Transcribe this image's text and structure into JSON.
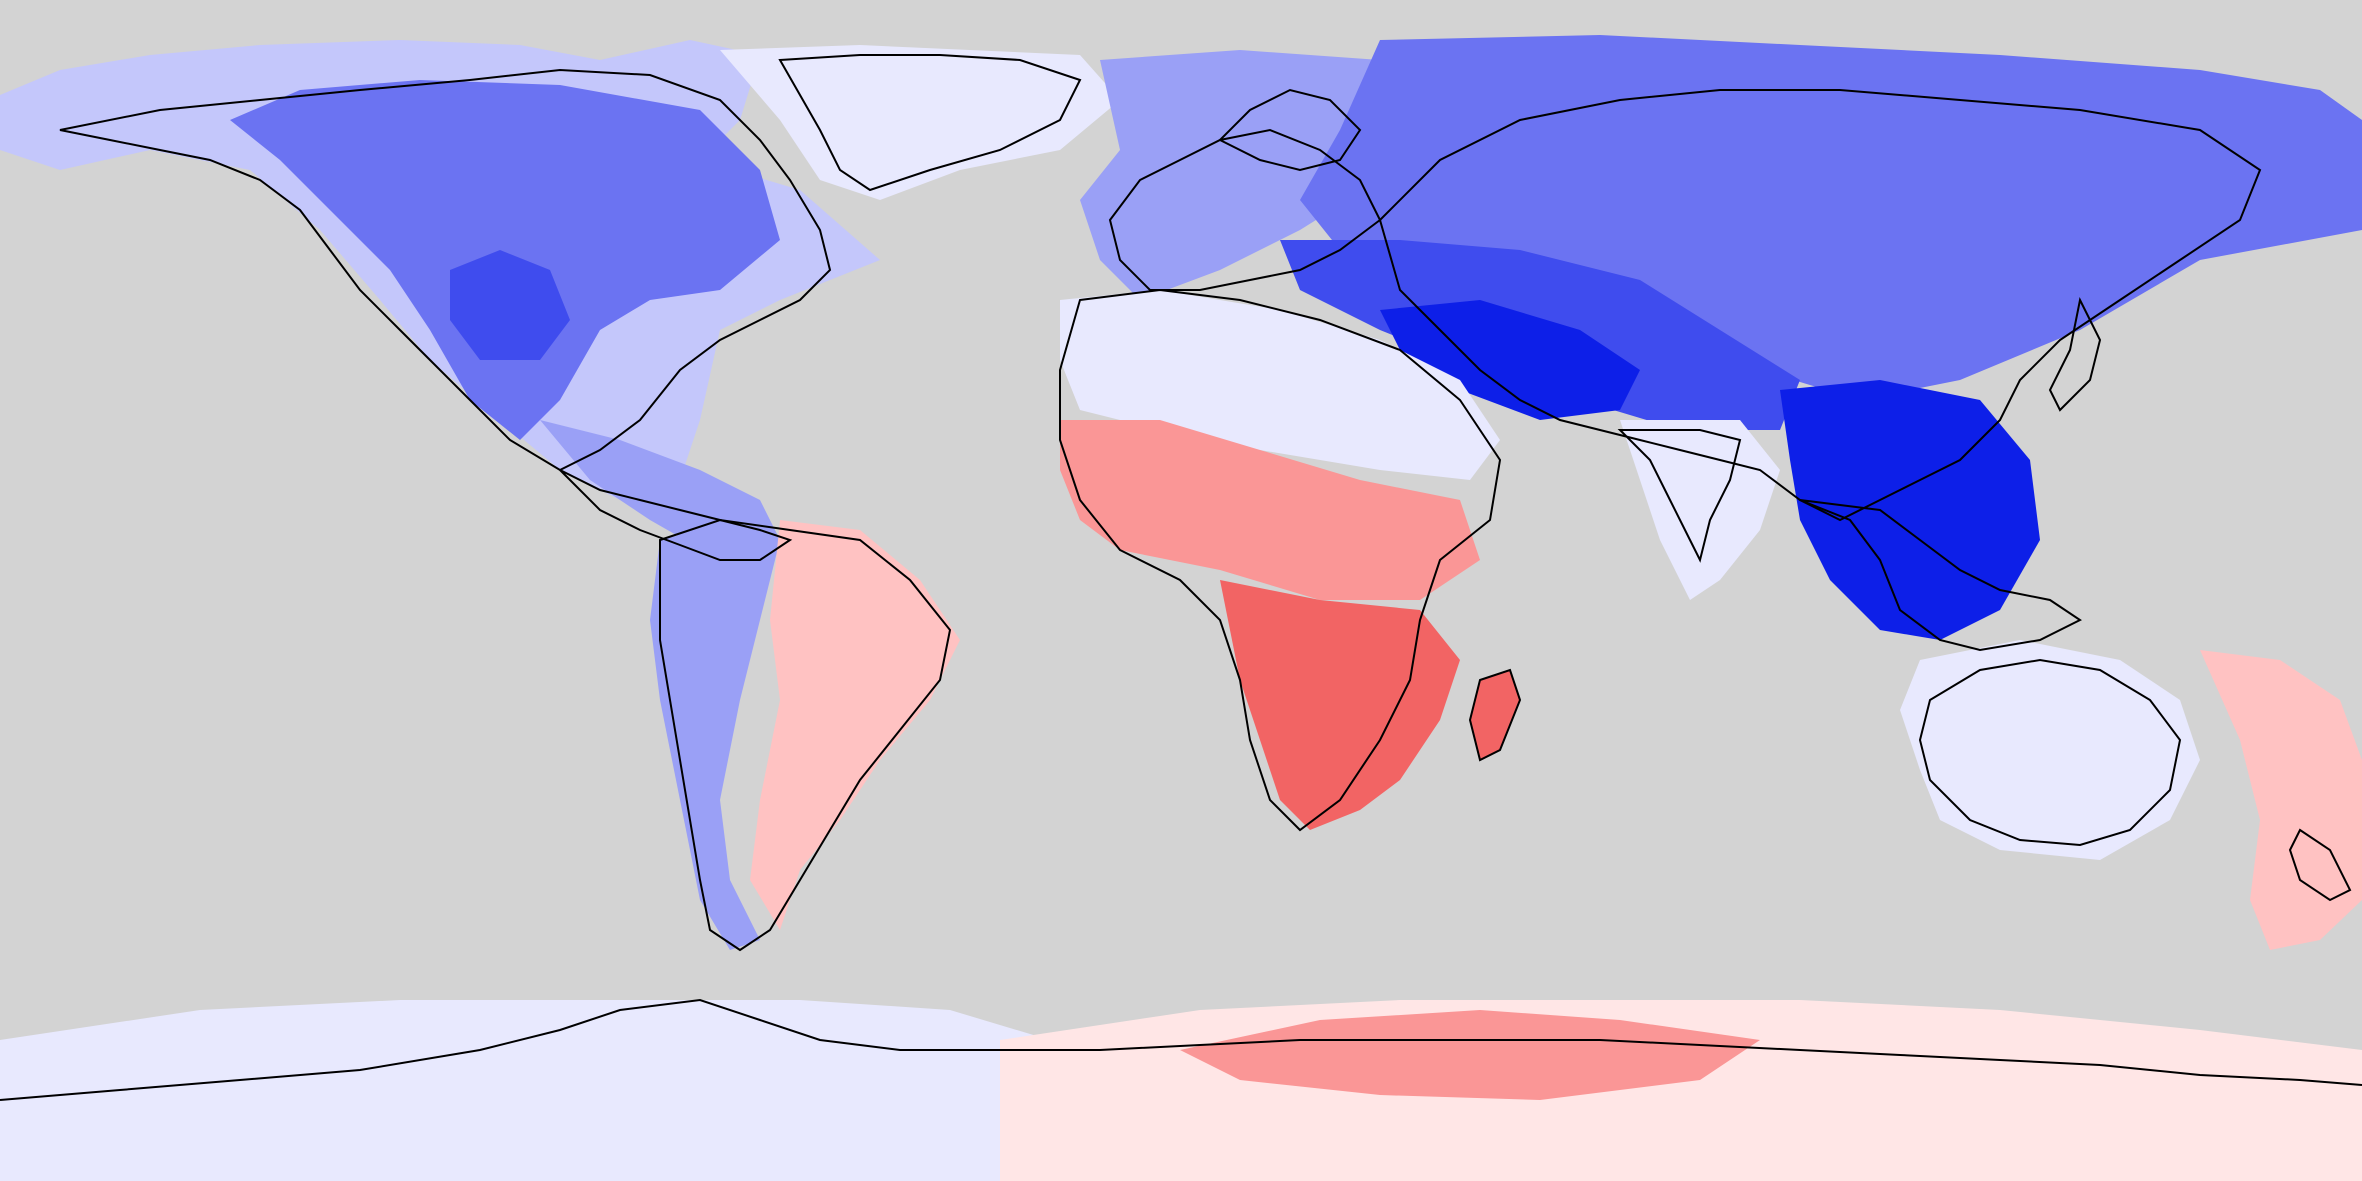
{
  "map": {
    "projection": "equirectangular",
    "ocean_color": "#d3d3d3",
    "coastline_color": "#000000",
    "legend_visible": false,
    "title": "",
    "color_scale": {
      "type": "diverging",
      "levels": [
        {
          "level": -4,
          "color": "#0d1fe8"
        },
        {
          "level": -3,
          "color": "#3f4cee"
        },
        {
          "level": -2,
          "color": "#6b73f2"
        },
        {
          "level": -1,
          "color": "#9aa0f6"
        },
        {
          "level": 0,
          "color": "#c4c7fb"
        },
        {
          "level": 1,
          "color": "#e8e9fe"
        },
        {
          "level": 2,
          "color": "#ffe6e6"
        },
        {
          "level": 3,
          "color": "#ffc2c2"
        },
        {
          "level": 4,
          "color": "#fa9696"
        },
        {
          "level": 5,
          "color": "#f26464"
        }
      ]
    },
    "regions": [
      {
        "name": "north-america-north",
        "level": 0
      },
      {
        "name": "north-america-core",
        "level": -2
      },
      {
        "name": "north-america-rockies",
        "level": -3
      },
      {
        "name": "greenland",
        "level": 1
      },
      {
        "name": "central-america",
        "level": -1
      },
      {
        "name": "south-america-andes",
        "level": -1
      },
      {
        "name": "south-america-east",
        "level": 3
      },
      {
        "name": "europe",
        "level": -1
      },
      {
        "name": "siberia",
        "level": -2
      },
      {
        "name": "central-asia",
        "level": -3
      },
      {
        "name": "tibet-himalaya",
        "level": -4
      },
      {
        "name": "southeast-asia",
        "level": -4
      },
      {
        "name": "india",
        "level": 1
      },
      {
        "name": "sahara-north",
        "level": 1
      },
      {
        "name": "west-africa",
        "level": 4
      },
      {
        "name": "southern-africa",
        "level": 5
      },
      {
        "name": "madagascar",
        "level": 5
      },
      {
        "name": "australia",
        "level": 1
      },
      {
        "name": "new-zealand-ocean",
        "level": 3
      },
      {
        "name": "antarctica-east",
        "level": 2
      },
      {
        "name": "antarctica-west",
        "level": 1
      },
      {
        "name": "antarctica-warm-band",
        "level": 4
      }
    ]
  }
}
